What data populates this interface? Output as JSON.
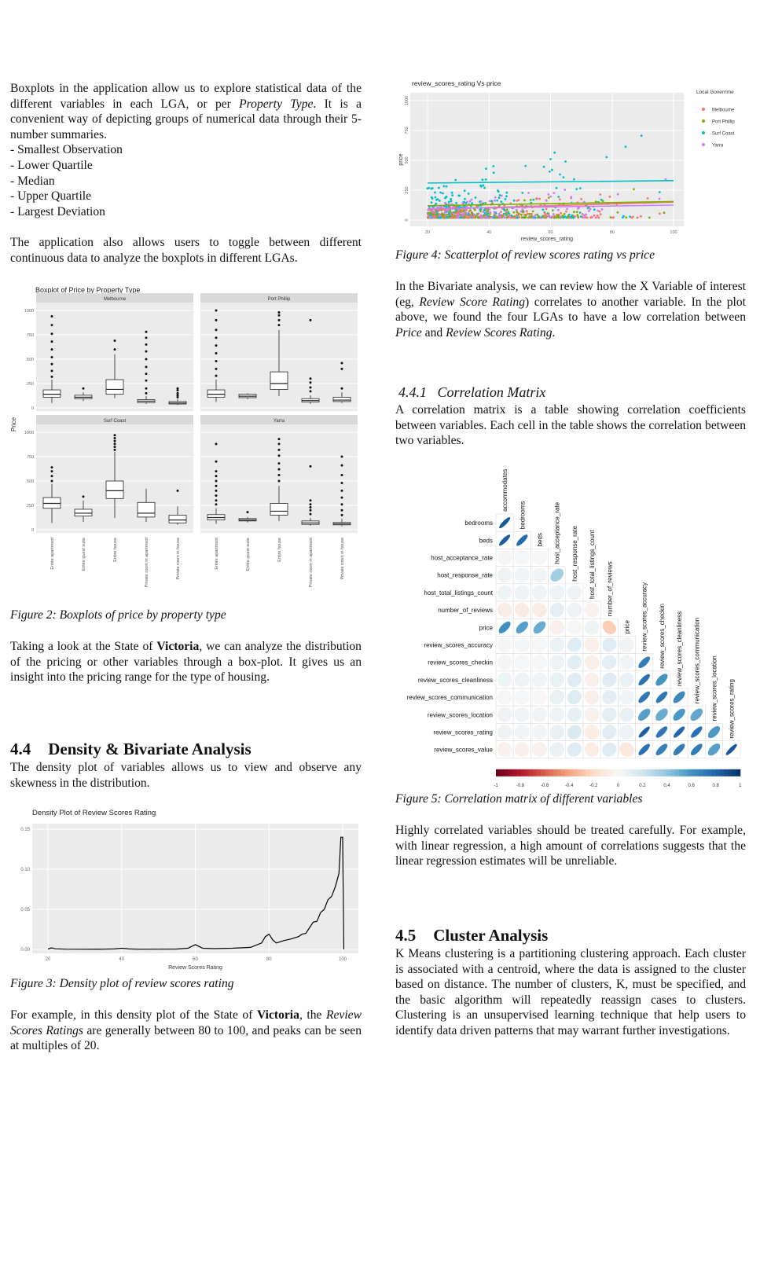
{
  "left": {
    "p1_a": "Boxplots in the application allow us to explore statistical data of the different variables in each LGA, or per ",
    "p1_em1": "Property Type",
    "p1_b": ". It is a convenient way of depicting groups of numerical data through their 5-number summaries.",
    "list": [
      "- Smallest Observation",
      "- Lower Quartile",
      "- Median",
      "- Upper Quartile",
      "- Largest Deviation"
    ],
    "p2": "The application also allows users to toggle between different continuous data to analyze the boxplots in different LGAs.",
    "fig2_caption": "Figure 2: Boxplots of price by property type",
    "p3_a": "Taking a look at the State of ",
    "p3_b": "Victoria",
    "p3_c": ", we can analyze the distribution of the pricing or other variables through a box-plot. It gives us an insight into the pricing range for the type of housing.",
    "sec44_num": "4.4",
    "sec44_title": "Density & Bivariate Analysis",
    "p4": "The density plot of variables allows us to view and observe any skewness in the distribution.",
    "fig3_caption": "Figure 3: Density plot of review scores rating",
    "p5_a": "For example, in this density plot of the State of ",
    "p5_b": "Victoria",
    "p5_c": ", the ",
    "p5_em": "Review Scores Ratings",
    "p5_d": " are generally between 80 to 100, and peaks can be seen at multiples of 20."
  },
  "right": {
    "fig4_caption": "Figure 4: Scatterplot of review scores rating vs price",
    "p1_a": "In the Bivariate analysis, we can review how the X Variable of interest (eg, ",
    "p1_em1": "Review Score Rating",
    "p1_b": ") correlates to another variable. In the plot above, we found the four LGAs to have a low correlation between ",
    "p1_em2": "Price",
    "p1_c": " and ",
    "p1_em3": "Review Scores Rating",
    "p1_d": ".",
    "sec441_title": "4.4.1   Correlation Matrix",
    "p2": "A correlation matrix is a table showing correlation coefficients between variables. Each cell in the table shows the correlation between two variables.",
    "fig5_caption": "Figure 5: Correlation matrix of different variables",
    "p3": "Highly correlated variables should be treated carefully. For example, with linear regression, a high amount of correlations suggests that the linear regression estimates will be unreliable.",
    "sec45_num": "4.5",
    "sec45_title": "Cluster Analysis",
    "p4": "K Means clustering is a partitioning clustering approach. Each cluster is associated with a centroid, where the data is assigned to the cluster based on distance. The number of clusters, K, must be specified, and the basic algorithm will repeatedly reassign cases to clusters. Clustering is an unsupervised learning technique that help users to identify data driven patterns that may warrant further investigations."
  },
  "chart_data": [
    {
      "type": "box",
      "title": "Boxplot of Price by Property Type",
      "ylabel": "Price",
      "ylim": [
        0,
        1000
      ],
      "yticks": [
        0,
        250,
        500,
        750,
        1000
      ],
      "categories": [
        "Entire apartment",
        "Entire guest suite",
        "Entire house",
        "Private room in apartment",
        "Private room in house"
      ],
      "panels": [
        {
          "name": "Melbourne",
          "boxes": [
            {
              "min": 50,
              "q1": 110,
              "median": 140,
              "q3": 185,
              "max": 290,
              "outliers": [
                320,
                380,
                450,
                520,
                600,
                680,
                760,
                850,
                940
              ]
            },
            {
              "min": 70,
              "q1": 95,
              "median": 110,
              "q3": 130,
              "max": 160,
              "outliers": [
                200
              ]
            },
            {
              "min": 100,
              "q1": 140,
              "median": 190,
              "q3": 290,
              "max": 550,
              "outliers": [
                600,
                690
              ]
            },
            {
              "min": 40,
              "q1": 55,
              "median": 70,
              "q3": 85,
              "max": 120,
              "outliers": [
                150,
                200,
                280,
                350,
                420,
                500,
                580,
                650,
                720,
                780
              ]
            },
            {
              "min": 30,
              "q1": 40,
              "median": 50,
              "q3": 65,
              "max": 90,
              "outliers": [
                110,
                130,
                150,
                180,
                200
              ]
            }
          ]
        },
        {
          "name": "Port Phillip",
          "boxes": [
            {
              "min": 60,
              "q1": 110,
              "median": 140,
              "q3": 185,
              "max": 290,
              "outliers": [
                330,
                400,
                480,
                560,
                640,
                720,
                800,
                900,
                1000
              ]
            },
            {
              "min": 90,
              "q1": 105,
              "median": 120,
              "q3": 140,
              "max": 150,
              "outliers": []
            },
            {
              "min": 120,
              "q1": 190,
              "median": 250,
              "q3": 370,
              "max": 800,
              "outliers": [
                850,
                900,
                950,
                980
              ]
            },
            {
              "min": 40,
              "q1": 60,
              "median": 75,
              "q3": 95,
              "max": 130,
              "outliers": [
                170,
                210,
                260,
                300,
                900
              ]
            },
            {
              "min": 50,
              "q1": 65,
              "median": 80,
              "q3": 110,
              "max": 160,
              "outliers": [
                200,
                400,
                460
              ]
            }
          ]
        },
        {
          "name": "Surf Coast",
          "boxes": [
            {
              "min": 70,
              "q1": 220,
              "median": 270,
              "q3": 330,
              "max": 470,
              "outliers": [
                500,
                550,
                600,
                640
              ]
            },
            {
              "min": 80,
              "q1": 140,
              "median": 170,
              "q3": 210,
              "max": 300,
              "outliers": [
                340
              ]
            },
            {
              "min": 120,
              "q1": 320,
              "median": 400,
              "q3": 500,
              "max": 800,
              "outliers": [
                820,
                850,
                880,
                910,
                940,
                970
              ]
            },
            {
              "min": 80,
              "q1": 130,
              "median": 170,
              "q3": 280,
              "max": 420,
              "outliers": []
            },
            {
              "min": 50,
              "q1": 70,
              "median": 100,
              "q3": 150,
              "max": 240,
              "outliers": [
                400
              ]
            }
          ]
        },
        {
          "name": "Yarra",
          "boxes": [
            {
              "min": 60,
              "q1": 100,
              "median": 125,
              "q3": 155,
              "max": 220,
              "outliers": [
                260,
                300,
                350,
                400,
                450,
                500,
                550,
                600,
                700,
                880
              ]
            },
            {
              "min": 75,
              "q1": 90,
              "median": 100,
              "q3": 115,
              "max": 130,
              "outliers": [
                180
              ]
            },
            {
              "min": 90,
              "q1": 150,
              "median": 190,
              "q3": 270,
              "max": 450,
              "outliers": [
                500,
                560,
                620,
                680,
                760,
                820,
                880,
                930
              ]
            },
            {
              "min": 40,
              "q1": 55,
              "median": 70,
              "q3": 90,
              "max": 120,
              "outliers": [
                160,
                200,
                230,
                260,
                300,
                650
              ]
            },
            {
              "min": 35,
              "q1": 50,
              "median": 60,
              "q3": 75,
              "max": 110,
              "outliers": [
                150,
                200,
                260,
                330,
                400,
                480,
                560,
                660,
                750
              ]
            }
          ]
        }
      ]
    },
    {
      "type": "line",
      "title": "Density Plot of Review Scores Rating",
      "xlabel": "Review Scores Rating",
      "xlim": [
        20,
        100
      ],
      "ylim": [
        0,
        0.15
      ],
      "xticks": [
        20,
        40,
        60,
        80,
        100
      ],
      "yticks": [
        "0.00",
        "0.05",
        "0.10",
        "0.15"
      ],
      "x": [
        20,
        21,
        22,
        25,
        30,
        35,
        38,
        40,
        42,
        45,
        50,
        55,
        58,
        60,
        62,
        65,
        70,
        75,
        78,
        79,
        80,
        81,
        82,
        84,
        86,
        88,
        89,
        90,
        91,
        92,
        93,
        94,
        95,
        96,
        97,
        98,
        99,
        99.5,
        100,
        100.3
      ],
      "y": [
        0.0005,
        0.002,
        0.0008,
        0.0003,
        0.0002,
        0.0003,
        0.0006,
        0.0015,
        0.0006,
        0.0002,
        0.0003,
        0.0005,
        0.0015,
        0.006,
        0.0015,
        0.001,
        0.0015,
        0.0025,
        0.008,
        0.016,
        0.019,
        0.012,
        0.008,
        0.011,
        0.013,
        0.016,
        0.019,
        0.02,
        0.027,
        0.034,
        0.035,
        0.046,
        0.05,
        0.062,
        0.066,
        0.078,
        0.095,
        0.14,
        0.14,
        0.0
      ]
    },
    {
      "type": "scatter",
      "title": "review_scores_rating Vs price",
      "xlabel": "review_scores_rating",
      "ylabel": "price",
      "xlim": [
        20,
        100
      ],
      "ylim": [
        0,
        1000
      ],
      "xticks": [
        20,
        40,
        60,
        80,
        100
      ],
      "yticks": [
        0,
        250,
        500,
        750,
        1000
      ],
      "legend_title": "Local Governme",
      "series": [
        {
          "name": "Melbourne",
          "color": "#f8766d",
          "trend": [
            [
              20,
              90
            ],
            [
              100,
              150
            ]
          ]
        },
        {
          "name": "Port Phillip",
          "color": "#7cae00",
          "trend": [
            [
              20,
              120
            ],
            [
              100,
              155
            ]
          ]
        },
        {
          "name": "Surf Coast",
          "color": "#00bfc4",
          "trend": [
            [
              20,
              310
            ],
            [
              100,
              330
            ]
          ]
        },
        {
          "name": "Yarra",
          "color": "#c77cff",
          "trend": [
            [
              20,
              95
            ],
            [
              100,
              125
            ]
          ]
        }
      ]
    },
    {
      "type": "heatmap",
      "variables": [
        "accommodates",
        "bedrooms",
        "beds",
        "host_acceptance_rate",
        "host_response_rate",
        "host_total_listings_count",
        "number_of_reviews",
        "price",
        "review_scores_accuracy",
        "review_scores_checkin",
        "review_scores_cleanliness",
        "review_scores_communication",
        "review_scores_location",
        "review_scores_rating",
        "review_scores_value"
      ],
      "colorbar_ticks": [
        "-1",
        "-0.8",
        "-0.6",
        "-0.4",
        "-0.2",
        "0",
        "0.2",
        "0.4",
        "0.6",
        "0.8",
        "1"
      ],
      "lower_triangle": [
        [
          0.85
        ],
        [
          0.83,
          0.78
        ],
        [
          0.02,
          0.01,
          0.01
        ],
        [
          0.04,
          0.03,
          0.03,
          0.35
        ],
        [
          0.05,
          0.04,
          0.04,
          0.06,
          0.05
        ],
        [
          -0.08,
          -0.09,
          -0.08,
          0.1,
          0.06,
          -0.04
        ],
        [
          0.62,
          0.55,
          0.5,
          -0.05,
          -0.01,
          0.05,
          -0.25
        ],
        [
          0.02,
          0.02,
          0.01,
          0.07,
          0.12,
          -0.05,
          0.12,
          0.04
        ],
        [
          0.02,
          0.01,
          0.01,
          0.06,
          0.11,
          -0.06,
          0.1,
          0.03,
          0.7
        ],
        [
          0.05,
          0.04,
          0.03,
          0.07,
          0.13,
          -0.05,
          0.12,
          0.07,
          0.75,
          0.6
        ],
        [
          0.01,
          0.01,
          0.0,
          0.07,
          0.13,
          -0.06,
          0.1,
          0.03,
          0.72,
          0.72,
          0.65
        ],
        [
          0.04,
          0.03,
          0.03,
          0.05,
          0.09,
          -0.04,
          0.09,
          0.08,
          0.55,
          0.5,
          0.58,
          0.52
        ],
        [
          0.04,
          0.03,
          0.03,
          0.08,
          0.14,
          -0.07,
          0.11,
          0.06,
          0.82,
          0.72,
          0.8,
          0.75,
          0.58
        ],
        [
          -0.04,
          -0.05,
          -0.04,
          0.07,
          0.13,
          -0.07,
          0.12,
          -0.1,
          0.75,
          0.68,
          0.7,
          0.7,
          0.55,
          0.85
        ]
      ]
    }
  ]
}
